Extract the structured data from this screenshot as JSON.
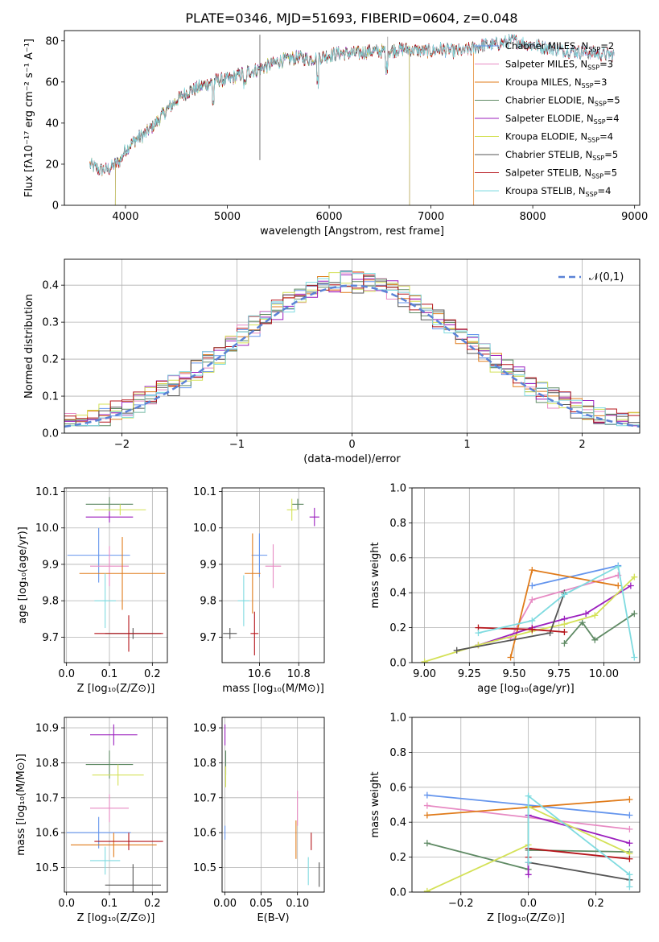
{
  "figure_title": "PLATE=0346, MJD=51693, FIBERID=0604, z=0.048",
  "colors": {
    "Chabrier MILES": "#6495ed",
    "Salpeter MILES": "#e78ac3",
    "Kroupa MILES": "#e07b1a",
    "Chabrier ELODIE": "#5f8a64",
    "Salpeter ELODIE": "#9b1fbe",
    "Kroupa ELODIE": "#d4e157",
    "Chabrier STELIB": "#555555",
    "Salpeter STELIB": "#b5141a",
    "Kroupa STELIB": "#7fdbe0",
    "normal": "#5b82d6"
  },
  "chart_data": [
    {
      "id": "spectrum",
      "type": "line",
      "title": "PLATE=0346, MJD=51693, FIBERID=0604, z=0.048",
      "xlabel": "wavelength [Angstrom, rest frame]",
      "ylabel": "Flux [fλ10⁻¹⁷ erg cm⁻² s⁻¹ A⁻¹]",
      "xlim": [
        3400,
        9050
      ],
      "ylim": [
        0,
        85
      ],
      "xticks": [
        4000,
        5000,
        6000,
        7000,
        8000,
        9000
      ],
      "yticks": [
        0,
        20,
        40,
        60,
        80
      ],
      "grid": false,
      "legend_position": "right",
      "continuum": {
        "x": [
          3650,
          3750,
          3850,
          3950,
          4000,
          4100,
          4200,
          4300,
          4400,
          4500,
          4600,
          4700,
          4800,
          4900,
          5000,
          5100,
          5200,
          5300,
          5400,
          5500,
          5600,
          5700,
          5800,
          5900,
          6000,
          6100,
          6200,
          6300,
          6400,
          6500,
          6600,
          6700,
          6800,
          6900,
          7000,
          7100,
          7200,
          7300,
          7400,
          7500,
          7600,
          7700,
          7800,
          7900,
          8000,
          8200,
          8400,
          8600,
          8800
        ],
        "y": [
          20,
          17,
          18,
          22,
          27,
          32,
          35,
          40,
          46,
          51,
          55,
          57,
          59,
          61,
          61,
          63,
          65,
          66,
          68,
          70,
          71,
          72,
          71,
          72,
          73,
          74,
          74,
          74,
          75,
          75,
          75,
          76,
          76,
          75,
          75,
          76,
          75,
          75,
          76,
          78,
          78,
          79,
          80,
          79,
          78,
          76,
          75,
          74,
          73
        ]
      },
      "series": [
        {
          "name": "Chabrier MILES, N_SSP=2",
          "nssp": 2
        },
        {
          "name": "Salpeter MILES, N_SSP=3",
          "nssp": 3
        },
        {
          "name": "Kroupa MILES, N_SSP=3",
          "nssp": 3,
          "cutoff": 7420
        },
        {
          "name": "Chabrier ELODIE, N_SSP=5",
          "nssp": 5,
          "range": [
            3900,
            6790
          ]
        },
        {
          "name": "Salpeter ELODIE, N_SSP=4",
          "nssp": 4,
          "range": [
            3900,
            6790
          ]
        },
        {
          "name": "Kroupa ELODIE, N_SSP=4",
          "nssp": 4,
          "range": [
            3900,
            6790
          ]
        },
        {
          "name": "Chabrier STELIB, N_SSP=5",
          "nssp": 5
        },
        {
          "name": "Salpeter STELIB, N_SSP=5",
          "nssp": 5
        },
        {
          "name": "Kroupa STELIB, N_SSP=4",
          "nssp": 4
        }
      ]
    },
    {
      "id": "residuals",
      "type": "line",
      "xlabel": "(data-model)/error",
      "ylabel": "Normed distribution",
      "xlim": [
        -2.5,
        2.5
      ],
      "ylim": [
        0,
        0.47
      ],
      "xticks": [
        -2,
        -1,
        0,
        1,
        2
      ],
      "yticks": [
        0.0,
        0.1,
        0.2,
        0.3,
        0.4
      ],
      "grid": true,
      "legend_position": "top-right",
      "normal_label": "𝒩(0,1)",
      "bins": 50
    },
    {
      "id": "age_vs_Z",
      "type": "scatter",
      "xlabel": "Z [log₁₀(Z/Z⊙)]",
      "ylabel": "age  [log₁₀(age/yr)]",
      "xlim": [
        -0.005,
        0.235
      ],
      "ylim": [
        9.63,
        10.11
      ],
      "xticks": [
        0.0,
        0.1,
        0.2
      ],
      "yticks": [
        9.7,
        9.8,
        9.9,
        10.0,
        10.1
      ],
      "grid": true,
      "points": [
        {
          "series": "Chabrier MILES",
          "x": 0.075,
          "xerr": 0.073,
          "y": 9.925,
          "yerr": 0.075
        },
        {
          "series": "Salpeter MILES",
          "x": 0.1,
          "xerr": 0.045,
          "y": 9.895,
          "yerr": 0.055
        },
        {
          "series": "Kroupa MILES",
          "x": 0.13,
          "xerr": 0.1,
          "y": 9.875,
          "yerr": 0.1
        },
        {
          "series": "Chabrier ELODIE",
          "x": 0.1,
          "xerr": 0.055,
          "y": 10.065,
          "yerr": 0.02
        },
        {
          "series": "Salpeter ELODIE",
          "x": 0.1,
          "xerr": 0.055,
          "y": 10.03,
          "yerr": 0.015
        },
        {
          "series": "Kroupa ELODIE",
          "x": 0.125,
          "xerr": 0.06,
          "y": 10.05,
          "yerr": 0.015
        },
        {
          "series": "Chabrier STELIB",
          "x": 0.155,
          "xerr": 0.065,
          "y": 9.71,
          "yerr": 0.015
        },
        {
          "series": "Salpeter STELIB",
          "x": 0.145,
          "xerr": 0.08,
          "y": 9.71,
          "yerr": 0.05
        },
        {
          "series": "Kroupa STELIB",
          "x": 0.09,
          "xerr": 0.025,
          "y": 9.8,
          "yerr": 0.075
        }
      ]
    },
    {
      "id": "age_vs_mass",
      "type": "scatter",
      "xlabel": "mass [log₁₀(M/M⊙)]",
      "ylabel": "",
      "xlim": [
        10.41,
        10.93
      ],
      "ylim": [
        9.63,
        10.11
      ],
      "xticks": [
        10.6,
        10.8
      ],
      "yticks": [
        9.7,
        9.8,
        9.9,
        10.0,
        10.1
      ],
      "grid": true,
      "points": [
        {
          "series": "Chabrier MILES",
          "x": 10.6,
          "xerr": 0.04,
          "y": 9.925,
          "yerr": 0.06
        },
        {
          "series": "Salpeter MILES",
          "x": 10.67,
          "xerr": 0.04,
          "y": 9.895,
          "yerr": 0.06
        },
        {
          "series": "Kroupa MILES",
          "x": 10.565,
          "xerr": 0.04,
          "y": 9.875,
          "yerr": 0.11
        },
        {
          "series": "Chabrier ELODIE",
          "x": 10.795,
          "xerr": 0.03,
          "y": 10.065,
          "yerr": 0.015
        },
        {
          "series": "Salpeter ELODIE",
          "x": 10.88,
          "xerr": 0.025,
          "y": 10.03,
          "yerr": 0.025
        },
        {
          "series": "Kroupa ELODIE",
          "x": 10.765,
          "xerr": 0.025,
          "y": 10.05,
          "yerr": 0.03
        },
        {
          "series": "Chabrier STELIB",
          "x": 10.45,
          "xerr": 0.035,
          "y": 9.71,
          "yerr": 0.015
        },
        {
          "series": "Salpeter STELIB",
          "x": 10.575,
          "xerr": 0.02,
          "y": 9.71,
          "yerr": 0.06
        },
        {
          "series": "Kroupa STELIB",
          "x": 10.52,
          "xerr": 0.03,
          "y": 9.8,
          "yerr": 0.07
        }
      ]
    },
    {
      "id": "mass_weight_vs_age",
      "type": "line",
      "xlabel": "age  [log₁₀(age/yr)]",
      "ylabel": "mass weight",
      "xlim": [
        8.93,
        10.2
      ],
      "ylim": [
        0,
        1.0
      ],
      "xticks": [
        9.0,
        9.25,
        9.5,
        9.75,
        10.0
      ],
      "xticklabels": [
        "9.00",
        "9.25",
        "9.50",
        "9.75",
        "10.00"
      ],
      "yticks": [
        0.0,
        0.2,
        0.4,
        0.6,
        0.8,
        1.0
      ],
      "grid": true,
      "series": [
        {
          "name": "Chabrier MILES",
          "x": [
            9.6,
            10.08
          ],
          "y": [
            0.44,
            0.555
          ]
        },
        {
          "name": "Salpeter MILES",
          "x": [
            9.48,
            9.6,
            10.08
          ],
          "y": [
            0.14,
            0.36,
            0.5
          ]
        },
        {
          "name": "Kroupa MILES",
          "x": [
            9.48,
            9.6,
            10.08
          ],
          "y": [
            0.03,
            0.53,
            0.44
          ]
        },
        {
          "name": "Chabrier ELODIE",
          "x": [
            9.78,
            9.88,
            9.95,
            10.17
          ],
          "y": [
            0.11,
            0.23,
            0.13,
            0.28
          ]
        },
        {
          "name": "Salpeter ELODIE",
          "x": [
            9.3,
            9.6,
            9.78,
            9.9,
            10.15
          ],
          "y": [
            0.1,
            0.2,
            0.25,
            0.28,
            0.44
          ]
        },
        {
          "name": "Kroupa ELODIE",
          "x": [
            9.0,
            9.3,
            9.6,
            9.78,
            9.95,
            10.17
          ],
          "y": [
            0.005,
            0.1,
            0.18,
            0.22,
            0.27,
            0.49
          ]
        },
        {
          "name": "Chabrier STELIB",
          "x": [
            9.18,
            9.7,
            9.78
          ],
          "y": [
            0.07,
            0.17,
            0.4
          ]
        },
        {
          "name": "Salpeter STELIB",
          "x": [
            9.3,
            9.6,
            9.78
          ],
          "y": [
            0.2,
            0.19,
            0.175
          ]
        },
        {
          "name": "Kroupa STELIB",
          "x": [
            9.3,
            9.6,
            9.78,
            10.08,
            10.17
          ],
          "y": [
            0.17,
            0.24,
            0.39,
            0.55,
            0.03
          ]
        }
      ]
    },
    {
      "id": "mass_vs_Z",
      "type": "scatter",
      "xlabel": "Z [log₁₀(Z/Z⊙)]",
      "ylabel": "mass [log₁₀(M/M⊙)]",
      "xlim": [
        -0.005,
        0.235
      ],
      "ylim": [
        10.43,
        10.93
      ],
      "xticks": [
        0.0,
        0.1,
        0.2
      ],
      "yticks": [
        10.5,
        10.6,
        10.7,
        10.8,
        10.9
      ],
      "grid": true,
      "points": [
        {
          "series": "Chabrier MILES",
          "x": 0.075,
          "xerr": 0.075,
          "y": 10.6,
          "yerr": 0.045
        },
        {
          "series": "Salpeter MILES",
          "x": 0.1,
          "xerr": 0.045,
          "y": 10.67,
          "yerr": 0.04
        },
        {
          "series": "Kroupa MILES",
          "x": 0.11,
          "xerr": 0.1,
          "y": 10.565,
          "yerr": 0.035
        },
        {
          "series": "Chabrier ELODIE",
          "x": 0.1,
          "xerr": 0.055,
          "y": 10.795,
          "yerr": 0.04
        },
        {
          "series": "Salpeter ELODIE",
          "x": 0.11,
          "xerr": 0.055,
          "y": 10.88,
          "yerr": 0.03
        },
        {
          "series": "Kroupa ELODIE",
          "x": 0.12,
          "xerr": 0.06,
          "y": 10.765,
          "yerr": 0.03
        },
        {
          "series": "Chabrier STELIB",
          "x": 0.155,
          "xerr": 0.065,
          "y": 10.45,
          "yerr": 0.06
        },
        {
          "series": "Salpeter STELIB",
          "x": 0.145,
          "xerr": 0.08,
          "y": 10.575,
          "yerr": 0.025
        },
        {
          "series": "Kroupa STELIB",
          "x": 0.09,
          "xerr": 0.035,
          "y": 10.52,
          "yerr": 0.04
        }
      ]
    },
    {
      "id": "mass_vs_ebv",
      "type": "scatter",
      "xlabel": "E(B-V)",
      "ylabel": "",
      "xlim": [
        -0.004,
        0.137
      ],
      "ylim": [
        10.43,
        10.93
      ],
      "xticks": [
        0.0,
        0.05,
        0.1
      ],
      "xticklabels": [
        "0.00",
        "0.05",
        "0.10"
      ],
      "yticks": [
        10.5,
        10.6,
        10.7,
        10.8,
        10.9
      ],
      "grid": true,
      "points": [
        {
          "series": "Chabrier MILES",
          "x": 0.0,
          "y": 10.6,
          "yerr": 0.02
        },
        {
          "series": "Salpeter MILES",
          "x": 0.1,
          "y": 10.67,
          "yerr": 0.05
        },
        {
          "series": "Kroupa MILES",
          "x": 0.098,
          "y": 10.58,
          "yerr": 0.055
        },
        {
          "series": "Chabrier ELODIE",
          "x": 0.001,
          "y": 10.8,
          "yerr": 0.035
        },
        {
          "series": "Salpeter ELODIE",
          "x": 0.0,
          "y": 10.88,
          "yerr": 0.03
        },
        {
          "series": "Kroupa ELODIE",
          "x": 0.001,
          "y": 10.76,
          "yerr": 0.03
        },
        {
          "series": "Chabrier STELIB",
          "x": 0.13,
          "y": 10.48,
          "yerr": 0.035
        },
        {
          "series": "Salpeter STELIB",
          "x": 0.119,
          "y": 10.575,
          "yerr": 0.025
        },
        {
          "series": "Kroupa STELIB",
          "x": 0.115,
          "y": 10.49,
          "yerr": 0.04
        }
      ]
    },
    {
      "id": "mass_weight_vs_Z",
      "type": "line",
      "xlabel": "Z [log₁₀(Z/Z⊙)]",
      "ylabel": "mass weight",
      "xlim": [
        -0.345,
        0.33
      ],
      "ylim": [
        0,
        1.0
      ],
      "xticks": [
        -0.2,
        0.0,
        0.2
      ],
      "xticklabels": [
        "−0.2",
        "0.0",
        "0.2"
      ],
      "yticks": [
        0.0,
        0.2,
        0.4,
        0.6,
        0.8,
        1.0
      ],
      "grid": true,
      "series": [
        {
          "name": "Chabrier MILES",
          "x": [
            -0.3,
            0.3
          ],
          "y": [
            0.555,
            0.44
          ]
        },
        {
          "name": "Salpeter MILES",
          "x": [
            -0.3,
            0.3
          ],
          "y": [
            0.495,
            0.36
          ]
        },
        {
          "name": "Kroupa MILES",
          "x": [
            -0.3,
            0.3
          ],
          "y": [
            0.44,
            0.53
          ]
        },
        {
          "name": "Chabrier ELODIE",
          "x": [
            -0.3,
            0.0,
            0.0,
            0.3
          ],
          "y": [
            0.28,
            0.13,
            0.24,
            0.23
          ]
        },
        {
          "name": "Salpeter ELODIE",
          "x": [
            0.0,
            0.0,
            0.3
          ],
          "y": [
            0.1,
            0.44,
            0.28
          ]
        },
        {
          "name": "Kroupa ELODIE",
          "x": [
            -0.3,
            0.0,
            0.0,
            0.3
          ],
          "y": [
            0.005,
            0.27,
            0.49,
            0.22
          ]
        },
        {
          "name": "Chabrier STELIB",
          "x": [
            0.0,
            0.3
          ],
          "y": [
            0.17,
            0.07
          ]
        },
        {
          "name": "Salpeter STELIB",
          "x": [
            0.0,
            0.0,
            0.3
          ],
          "y": [
            0.2,
            0.25,
            0.19
          ]
        },
        {
          "name": "Kroupa STELIB",
          "x": [
            0.0,
            0.0,
            0.3,
            0.3
          ],
          "y": [
            0.17,
            0.55,
            0.1,
            0.03
          ]
        }
      ]
    }
  ]
}
